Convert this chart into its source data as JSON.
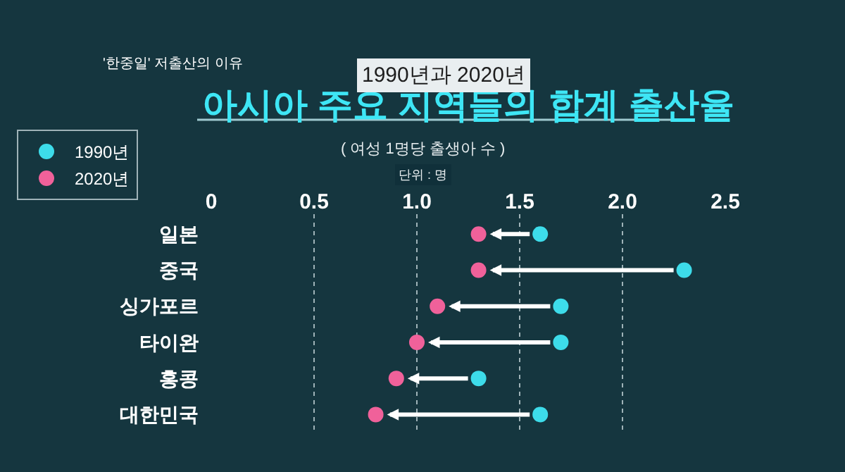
{
  "chart_data": {
    "type": "scatter",
    "orientation": "horizontal",
    "title": "아시아 주요 지역들의 합계 출산율",
    "subtitle": "1990년과 2020년",
    "annotations": [
      "'한중일' 저출산의 이유",
      "( 여성 1명당 출생아 수 )",
      "단위 : 명"
    ],
    "categories": [
      "일본",
      "중국",
      "싱가포르",
      "타이완",
      "홍콩",
      "대한민국"
    ],
    "series": [
      {
        "name": "1990년",
        "color": "#3ddcea",
        "values": [
          1.6,
          2.3,
          1.7,
          1.7,
          1.3,
          1.6
        ]
      },
      {
        "name": "2020년",
        "color": "#f0619a",
        "values": [
          1.3,
          1.3,
          1.1,
          1.0,
          0.9,
          0.8
        ]
      }
    ],
    "xlim": [
      0,
      2.5
    ],
    "xticks": [
      0,
      0.5,
      {
        "value": 1,
        "label": "1.0"
      },
      1.5,
      {
        "value": 2,
        "label": "2.0"
      },
      2.5
    ],
    "grid": "x",
    "legend": "top left",
    "marker": "circle"
  }
}
